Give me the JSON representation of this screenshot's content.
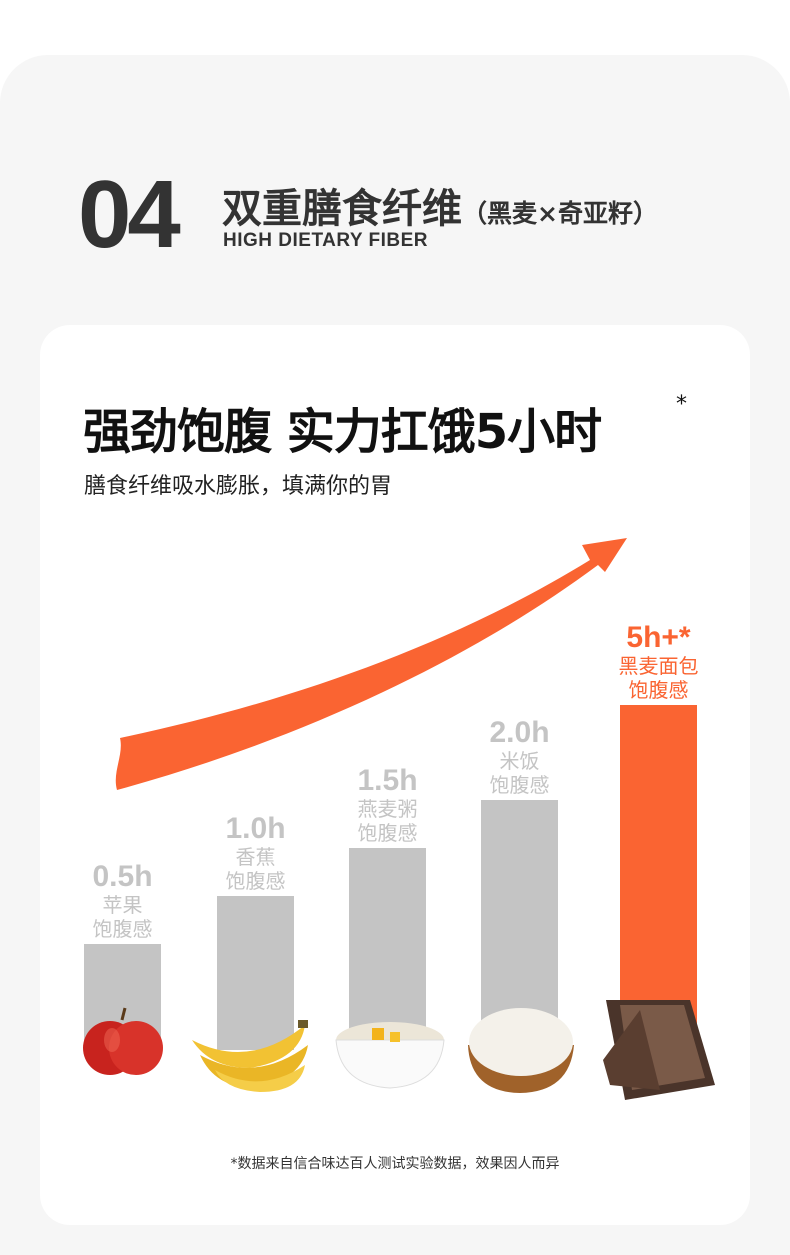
{
  "header": {
    "number": "04",
    "title": "双重膳食纤维",
    "title_note": "（黑麦×奇亚籽）",
    "subtitle": "HIGH DIETARY FIBER"
  },
  "card": {
    "title": "强劲饱腹 实力扛饿5小时",
    "title_mark": "*",
    "subtitle": "膳食纤维吸水膨胀，填满你的胃"
  },
  "chart_data": {
    "type": "bar",
    "categories": [
      "苹果",
      "香蕉",
      "燕麦粥",
      "米饭",
      "黑麦面包"
    ],
    "values": [
      0.5,
      1.0,
      1.5,
      2.0,
      5
    ],
    "value_labels": [
      "0.5h",
      "1.0h",
      "1.5h",
      "2.0h",
      "5h+*"
    ],
    "category_labels": [
      [
        "苹果",
        "饱腹感"
      ],
      [
        "香蕉",
        "饱腹感"
      ],
      [
        "燕麦粥",
        "饱腹感"
      ],
      [
        "米饭",
        "饱腹感"
      ],
      [
        "黑麦面包",
        "饱腹感"
      ]
    ],
    "unit": "h",
    "highlight_index": 4,
    "colors": {
      "default": "#c4c4c4",
      "highlight": "#fa6432",
      "label_default": "#c4c4c4",
      "label_highlight": "#fa6432"
    },
    "trend_arrow": true
  },
  "footnote": "*数据来自信合味达百人测试实验数据，效果因人而异"
}
